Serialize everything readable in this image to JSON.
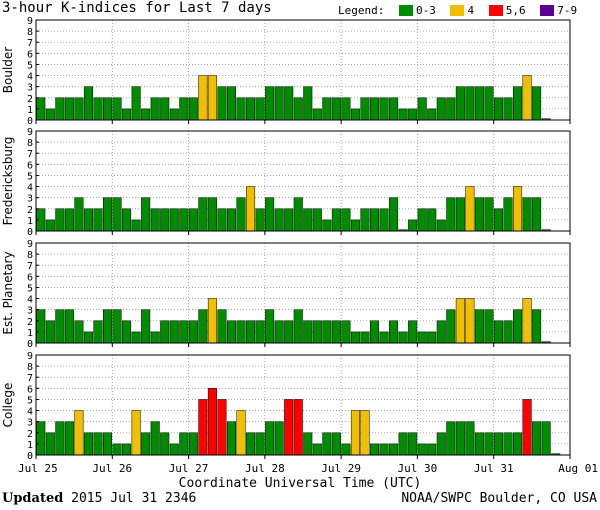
{
  "title": "3-hour K-indices for Last 7 days",
  "legend": {
    "label": "Legend:",
    "items": [
      {
        "label": "0-3",
        "color": "#008c00"
      },
      {
        "label": "4",
        "color": "#f0c000"
      },
      {
        "label": "5,6",
        "color": "#ff0000"
      },
      {
        "label": "7-9",
        "color": "#5a0090"
      }
    ]
  },
  "footer": {
    "updated_label": "Updated",
    "updated_value": "2015 Jul 31 2346",
    "credit": "NOAA/SWPC Boulder, CO USA"
  },
  "chart_data": [
    {
      "type": "bar",
      "station": "Boulder",
      "ylim": [
        0,
        9
      ],
      "yticks": [
        0,
        1,
        2,
        3,
        4,
        5,
        6,
        7,
        8,
        9
      ],
      "xlabel": "Coordinate Universal Time (UTC)",
      "xticks": [
        "Jul 25",
        "Jul 26",
        "Jul 27",
        "Jul 28",
        "Jul 29",
        "Jul 30",
        "Jul 31",
        "Aug 01"
      ],
      "values": [
        2,
        1,
        2,
        2,
        2,
        3,
        2,
        2,
        2,
        1,
        3,
        1,
        2,
        2,
        1,
        2,
        2,
        4,
        4,
        3,
        3,
        2,
        2,
        2,
        3,
        3,
        3,
        2,
        3,
        1,
        2,
        2,
        2,
        1,
        2,
        2,
        2,
        2,
        1,
        1,
        2,
        1,
        2,
        2,
        3,
        3,
        3,
        3,
        2,
        2,
        3,
        4,
        3,
        0
      ]
    },
    {
      "type": "bar",
      "station": "Fredericksburg",
      "ylim": [
        0,
        9
      ],
      "yticks": [
        0,
        1,
        2,
        3,
        4,
        5,
        6,
        7,
        8,
        9
      ],
      "xticks": [
        "Jul 25",
        "Jul 26",
        "Jul 27",
        "Jul 28",
        "Jul 29",
        "Jul 30",
        "Jul 31",
        "Aug 01"
      ],
      "values": [
        2,
        1,
        2,
        2,
        3,
        2,
        2,
        3,
        3,
        2,
        1,
        3,
        2,
        2,
        2,
        2,
        2,
        3,
        3,
        2,
        2,
        3,
        4,
        2,
        3,
        2,
        2,
        3,
        2,
        2,
        1,
        2,
        2,
        1,
        2,
        2,
        2,
        3,
        0,
        1,
        2,
        2,
        1,
        3,
        3,
        4,
        3,
        3,
        2,
        3,
        4,
        3,
        3,
        0
      ]
    },
    {
      "type": "bar",
      "station": "Est. Planetary",
      "ylim": [
        0,
        9
      ],
      "yticks": [
        0,
        1,
        2,
        3,
        4,
        5,
        6,
        7,
        8,
        9
      ],
      "xticks": [
        "Jul 25",
        "Jul 26",
        "Jul 27",
        "Jul 28",
        "Jul 29",
        "Jul 30",
        "Jul 31",
        "Aug 01"
      ],
      "values": [
        3,
        2,
        3,
        3,
        2,
        1,
        2,
        3,
        3,
        2,
        1,
        3,
        1,
        2,
        2,
        2,
        2,
        3,
        4,
        3,
        2,
        2,
        2,
        2,
        3,
        2,
        2,
        3,
        2,
        2,
        2,
        2,
        2,
        1,
        1,
        2,
        1,
        2,
        1,
        2,
        1,
        1,
        2,
        3,
        4,
        4,
        3,
        3,
        2,
        2,
        3,
        4,
        3,
        0
      ]
    },
    {
      "type": "bar",
      "station": "College",
      "ylim": [
        0,
        9
      ],
      "yticks": [
        0,
        1,
        2,
        3,
        4,
        5,
        6,
        7,
        8,
        9
      ],
      "xticks": [
        "Jul 25",
        "Jul 26",
        "Jul 27",
        "Jul 28",
        "Jul 29",
        "Jul 30",
        "Jul 31",
        "Aug 01"
      ],
      "values": [
        3,
        2,
        3,
        3,
        4,
        2,
        2,
        2,
        1,
        1,
        4,
        2,
        3,
        2,
        1,
        2,
        2,
        5,
        6,
        5,
        3,
        4,
        2,
        2,
        3,
        3,
        5,
        5,
        2,
        1,
        2,
        2,
        1,
        4,
        4,
        1,
        1,
        1,
        2,
        2,
        1,
        1,
        2,
        3,
        3,
        3,
        2,
        2,
        2,
        2,
        2,
        5,
        3,
        3,
        0
      ]
    }
  ]
}
